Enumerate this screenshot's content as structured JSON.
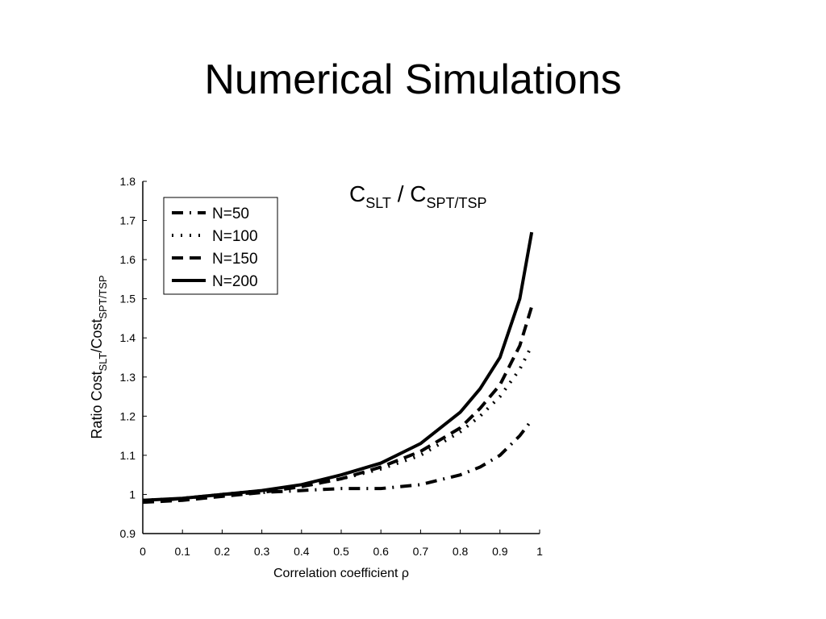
{
  "page_title": "Numerical Simulations",
  "chart_data": {
    "type": "line",
    "annotation": {
      "main": "C",
      "sub": "SLT",
      "mid": " / C",
      "sub2": "SPT/TSP"
    },
    "xlabel": "Correlation coefficient ρ",
    "ylabel": {
      "main": "Ratio Cost",
      "sub": "SLT",
      "mid": "/Cost",
      "sub2": "SPT/TSP"
    },
    "x": [
      0,
      0.1,
      0.2,
      0.3,
      0.4,
      0.5,
      0.6,
      0.7,
      0.8,
      0.85,
      0.9,
      0.95,
      0.98
    ],
    "series": [
      {
        "name": "N=50",
        "color": "#000000",
        "style": "dashdot",
        "values": [
          0.98,
          0.99,
          1.0,
          1.005,
          1.01,
          1.015,
          1.015,
          1.025,
          1.05,
          1.07,
          1.1,
          1.15,
          1.19
        ]
      },
      {
        "name": "N=100",
        "color": "#000000",
        "style": "dotted",
        "values": [
          0.985,
          0.99,
          1.0,
          1.01,
          1.02,
          1.04,
          1.065,
          1.1,
          1.16,
          1.2,
          1.25,
          1.32,
          1.38
        ]
      },
      {
        "name": "N=150",
        "color": "#000000",
        "style": "dashed",
        "values": [
          0.98,
          0.985,
          0.995,
          1.005,
          1.02,
          1.04,
          1.07,
          1.11,
          1.17,
          1.22,
          1.28,
          1.38,
          1.48
        ]
      },
      {
        "name": "N=200",
        "color": "#000000",
        "style": "solid",
        "values": [
          0.985,
          0.99,
          1.0,
          1.01,
          1.025,
          1.05,
          1.08,
          1.13,
          1.21,
          1.27,
          1.35,
          1.5,
          1.67
        ]
      }
    ],
    "xlim": [
      0,
      1
    ],
    "xticks": [
      0,
      0.1,
      0.2,
      0.3,
      0.4,
      0.5,
      0.6,
      0.7,
      0.8,
      0.9,
      1
    ],
    "ylim": [
      0.9,
      1.8
    ],
    "yticks": [
      0.9,
      1,
      1.1,
      1.2,
      1.3,
      1.4,
      1.5,
      1.6,
      1.7,
      1.8
    ],
    "legend": "upper-left",
    "grid": false
  }
}
